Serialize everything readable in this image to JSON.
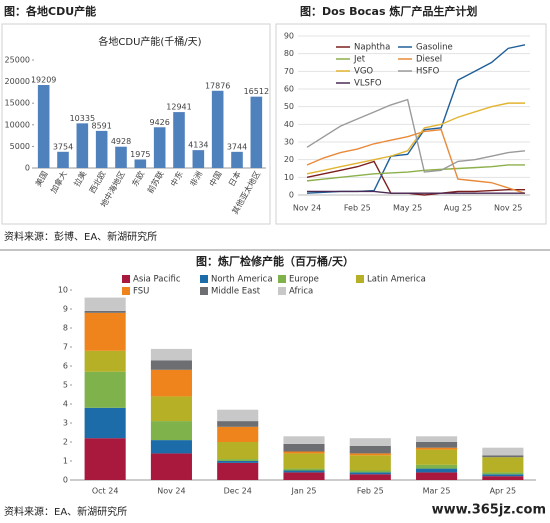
{
  "captions": [
    "图：各地CDU产能",
    "图：Dos Bocas 炼厂产品生产计划",
    "图：炼厂检修产能（百万桶/天）"
  ],
  "sources": [
    "资料来源：彭博、EA、新湖研究所",
    "资料来源：EA、新湖研究所"
  ],
  "watermark": "www.365jz.com",
  "chart_data": [
    {
      "type": "bar",
      "title": "各地CDU产能(千桶/天)",
      "categories": [
        "美国",
        "加拿大",
        "拉美",
        "西北欧",
        "地中海地区",
        "东欧",
        "前苏联",
        "中东",
        "非洲",
        "中国",
        "日本",
        "其他亚太地区"
      ],
      "values": [
        19209,
        3754,
        10335,
        8591,
        4928,
        1975,
        9426,
        12941,
        4134,
        17876,
        3744,
        16512
      ],
      "color": "#4f81bd",
      "ylim": [
        0,
        25000
      ],
      "yticks": [
        0,
        5000,
        10000,
        15000,
        20000,
        25000
      ],
      "grid": false
    },
    {
      "type": "line",
      "categories": [
        "Nov 24",
        null,
        null,
        "Feb 25",
        null,
        null,
        "May 25",
        null,
        null,
        "Aug 25",
        null,
        null,
        "Nov 25",
        null
      ],
      "ylim": [
        0,
        90
      ],
      "yticks": [
        0,
        10,
        20,
        30,
        40,
        50,
        60,
        70,
        80,
        90
      ],
      "grid": true,
      "legend": "top-left",
      "series": [
        {
          "name": "Naphtha",
          "color": "#7b1f1f",
          "values": [
            10,
            12,
            14,
            16,
            19,
            1,
            1,
            0,
            1,
            2,
            2,
            2.5,
            3,
            3
          ]
        },
        {
          "name": "Gasoline",
          "color": "#1f5f99",
          "values": [
            1,
            1.5,
            2,
            2,
            2.5,
            22,
            23,
            37,
            38,
            65,
            70,
            75,
            83,
            85
          ]
        },
        {
          "name": "Jet",
          "color": "#8cb04a",
          "values": [
            8,
            9,
            10,
            11,
            12,
            12.5,
            13,
            14,
            14.5,
            15,
            15.5,
            16,
            17,
            17
          ]
        },
        {
          "name": "Diesel",
          "color": "#e98a3a",
          "values": [
            17,
            21,
            24,
            26,
            29,
            31,
            33,
            36,
            37,
            9,
            8,
            7,
            4,
            1
          ]
        },
        {
          "name": "VGO",
          "color": "#e3b431",
          "values": [
            12,
            14,
            16,
            18,
            20,
            22,
            25,
            38,
            40,
            44,
            47,
            50,
            52,
            52
          ]
        },
        {
          "name": "HSFO",
          "color": "#9a9a9a",
          "values": [
            27,
            33,
            39,
            43,
            47,
            51,
            54,
            13,
            14,
            19,
            20,
            22,
            24,
            25
          ]
        },
        {
          "name": "VLSFO",
          "color": "#4b2a55",
          "values": [
            2,
            2,
            2,
            2,
            2,
            1,
            1,
            1,
            1,
            1,
            1,
            1,
            1,
            1
          ]
        }
      ]
    },
    {
      "type": "stacked-bar",
      "categories": [
        "Oct 24",
        "Nov 24",
        "Dec 24",
        "Jan 25",
        "Feb 25",
        "Mar 25",
        "Apr 25"
      ],
      "ylim": [
        0,
        10
      ],
      "yticks": [
        0,
        1,
        2,
        3,
        4,
        5,
        6,
        7,
        8,
        9,
        10
      ],
      "grid": false,
      "legend": "top",
      "series": [
        {
          "name": "Asia Pacific",
          "color": "#a8193d",
          "values": [
            2.2,
            1.4,
            0.9,
            0.4,
            0.3,
            0.4,
            0.2
          ]
        },
        {
          "name": "North America",
          "color": "#1b6ca8",
          "values": [
            1.6,
            0.7,
            0.1,
            0.1,
            0.1,
            0.2,
            0.1
          ]
        },
        {
          "name": "Europe",
          "color": "#7fb24a",
          "values": [
            1.9,
            1.0,
            0.1,
            0.1,
            0.1,
            0.2,
            0.1
          ]
        },
        {
          "name": "Latin America",
          "color": "#b5b025",
          "values": [
            1.1,
            1.3,
            0.9,
            0.8,
            0.8,
            0.8,
            0.8
          ]
        },
        {
          "name": "FSU",
          "color": "#f0841c",
          "values": [
            2.0,
            1.4,
            0.8,
            0.1,
            0.1,
            0.1,
            0
          ]
        },
        {
          "name": "Middle East",
          "color": "#6d6e71",
          "values": [
            0.1,
            0.5,
            0.3,
            0.4,
            0.4,
            0.3,
            0.1
          ]
        },
        {
          "name": "Africa",
          "color": "#c8c8c8",
          "values": [
            0.7,
            0.6,
            0.6,
            0.4,
            0.4,
            0.3,
            0.4
          ]
        }
      ]
    }
  ]
}
